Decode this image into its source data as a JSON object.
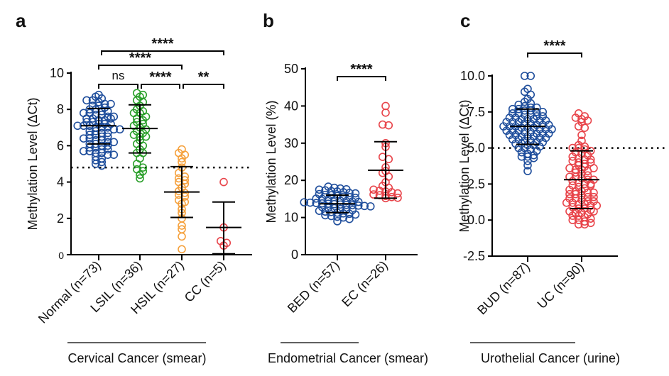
{
  "colors": {
    "blue": "#1f4e9c",
    "green": "#2ca02c",
    "orange": "#f5a13d",
    "red": "#e8444a"
  },
  "chart_data": [
    {
      "panel": "a",
      "type": "scatter",
      "ylabel": "Methylation Level (ΔCt)",
      "ylim": [
        0,
        10
      ],
      "yticks": [
        "0",
        "2",
        "4",
        "6",
        "8",
        "10"
      ],
      "ytick_values": [
        0,
        2,
        4,
        6,
        8,
        10
      ],
      "cutoff": 4.8,
      "group_caption": "Cervical Cancer (smear)",
      "groups": [
        {
          "label": "Normal (n=73)",
          "color": "#1f4e9c",
          "mean": 7.1,
          "sd_low": 6.1,
          "sd_high": 8.05,
          "values": [
            8.8,
            8.7,
            8.6,
            8.5,
            8.5,
            8.4,
            8.3,
            8.2,
            8.2,
            8.1,
            8.0,
            8.0,
            7.9,
            7.9,
            7.8,
            7.8,
            7.7,
            7.7,
            7.6,
            7.6,
            7.5,
            7.5,
            7.4,
            7.4,
            7.3,
            7.3,
            7.2,
            7.2,
            7.2,
            7.1,
            7.1,
            7.1,
            7.0,
            7.0,
            7.0,
            6.9,
            6.9,
            6.8,
            6.8,
            6.7,
            6.7,
            6.6,
            6.6,
            6.5,
            6.5,
            6.4,
            6.4,
            6.3,
            6.3,
            6.2,
            6.2,
            6.1,
            6.1,
            6.0,
            6.0,
            5.9,
            5.9,
            5.8,
            5.8,
            5.7,
            5.7,
            5.6,
            5.6,
            5.5,
            5.5,
            5.4,
            5.3,
            5.2,
            5.1,
            5.0,
            4.9,
            8.3,
            7.5
          ]
        },
        {
          "label": "LSIL (n=36)",
          "color": "#2ca02c",
          "mean": 6.95,
          "sd_low": 5.6,
          "sd_high": 8.25,
          "values": [
            8.9,
            8.8,
            8.7,
            8.5,
            8.4,
            8.2,
            8.0,
            7.9,
            7.8,
            7.8,
            7.6,
            7.5,
            7.4,
            7.3,
            7.2,
            7.1,
            7.0,
            6.9,
            6.8,
            6.7,
            6.6,
            6.5,
            6.5,
            6.3,
            6.1,
            6.0,
            5.8,
            5.6,
            5.6,
            5.3,
            5.0,
            4.8,
            4.7,
            4.6,
            4.4,
            4.2
          ]
        },
        {
          "label": "HSIL (n=27)",
          "color": "#f5a13d",
          "mean": 3.45,
          "sd_low": 2.05,
          "sd_high": 4.85,
          "values": [
            5.8,
            5.6,
            5.5,
            5.3,
            5.1,
            4.8,
            4.5,
            4.3,
            4.2,
            4.1,
            4.0,
            3.9,
            3.7,
            3.5,
            3.4,
            3.3,
            3.2,
            3.0,
            2.9,
            2.8,
            2.5,
            2.3,
            2.0,
            1.6,
            1.4,
            1.0,
            0.3
          ]
        },
        {
          "label": "CC (n=5)",
          "color": "#e8444a",
          "mean": 1.5,
          "sd_low": 0.05,
          "sd_high": 2.9,
          "values": [
            4.0,
            1.5,
            0.75,
            0.65,
            0.5
          ]
        }
      ],
      "comparisons": [
        {
          "from": 0,
          "to": 1,
          "row": 0,
          "label": "ns"
        },
        {
          "from": 1,
          "to": 2,
          "row": 0,
          "label": "****"
        },
        {
          "from": 2,
          "to": 3,
          "row": 0,
          "label": "**"
        },
        {
          "from": 0,
          "to": 2,
          "row": 1,
          "label": "****"
        },
        {
          "from": 0,
          "to": 3,
          "row": 2,
          "label": "****"
        }
      ]
    },
    {
      "panel": "b",
      "type": "scatter",
      "ylabel": "Methylation Level (%)",
      "ylim": [
        0,
        50
      ],
      "yticks": [
        "0",
        "10",
        "20",
        "30",
        "40",
        "50"
      ],
      "ytick_values": [
        0,
        10,
        20,
        30,
        40,
        50
      ],
      "cutoff": null,
      "group_caption": "Endometrial Cancer (smear)",
      "groups": [
        {
          "label": "BED (n=57)",
          "color": "#1f4e9c",
          "mean": 13.7,
          "sd_low": 11.3,
          "sd_high": 16.0,
          "values": [
            18.3,
            18.0,
            17.8,
            17.6,
            17.5,
            17.3,
            17.1,
            17.0,
            16.8,
            16.6,
            16.5,
            16.3,
            16.1,
            16.0,
            15.8,
            15.6,
            15.5,
            15.3,
            15.1,
            15.0,
            14.8,
            14.6,
            14.5,
            14.4,
            14.3,
            14.2,
            14.1,
            14.0,
            13.9,
            13.8,
            13.7,
            13.6,
            13.5,
            13.4,
            13.3,
            13.2,
            13.1,
            13.0,
            12.8,
            12.6,
            12.5,
            12.3,
            12.1,
            12.0,
            11.8,
            11.6,
            11.5,
            11.3,
            11.1,
            11.0,
            10.8,
            10.6,
            10.4,
            10.2,
            10.0,
            9.6,
            9.0
          ]
        },
        {
          "label": "EC (n=26)",
          "color": "#e8444a",
          "mean": 22.7,
          "sd_low": 15.2,
          "sd_high": 30.4,
          "values": [
            40.0,
            38.2,
            35.0,
            34.8,
            30.0,
            29.0,
            26.3,
            25.7,
            23.5,
            22.5,
            22.0,
            21.0,
            19.5,
            18.5,
            18.0,
            17.5,
            17.2,
            17.0,
            16.8,
            16.5,
            16.2,
            16.0,
            15.8,
            15.5,
            15.3,
            15.2
          ]
        }
      ],
      "comparisons": [
        {
          "from": 0,
          "to": 1,
          "row": 0,
          "label": "****"
        }
      ]
    },
    {
      "panel": "c",
      "type": "scatter",
      "ylabel": "Methylation Level (ΔCt)",
      "ylim": [
        -2.5,
        11
      ],
      "yticks": [
        "-2.5",
        "0.0",
        "2.5",
        "5.0",
        "7.5",
        "10.0"
      ],
      "ytick_values": [
        -2.5,
        0,
        2.5,
        5,
        7.5,
        10
      ],
      "cutoff": 5.0,
      "group_caption": "Urothelial Cancer  (urine)",
      "groups": [
        {
          "label": "BUD (n=87)",
          "color": "#1f4e9c",
          "mean": 6.5,
          "sd_low": 5.25,
          "sd_high": 7.7,
          "values": [
            10.0,
            10.0,
            9.1,
            8.9,
            8.7,
            8.4,
            8.2,
            8.1,
            8.0,
            7.9,
            7.8,
            7.8,
            7.7,
            7.7,
            7.6,
            7.6,
            7.5,
            7.5,
            7.4,
            7.4,
            7.3,
            7.3,
            7.2,
            7.2,
            7.1,
            7.1,
            7.0,
            7.0,
            7.0,
            6.9,
            6.9,
            6.8,
            6.8,
            6.8,
            6.7,
            6.7,
            6.6,
            6.6,
            6.6,
            6.5,
            6.5,
            6.5,
            6.4,
            6.4,
            6.4,
            6.3,
            6.3,
            6.3,
            6.2,
            6.2,
            6.2,
            6.1,
            6.1,
            6.0,
            6.0,
            6.0,
            5.9,
            5.9,
            5.8,
            5.8,
            5.8,
            5.7,
            5.7,
            5.6,
            5.6,
            5.5,
            5.5,
            5.4,
            5.4,
            5.3,
            5.3,
            5.2,
            5.2,
            5.1,
            5.0,
            5.0,
            4.9,
            4.8,
            4.7,
            4.6,
            4.5,
            4.4,
            4.4,
            4.3,
            4.1,
            3.8,
            3.4
          ]
        },
        {
          "label": "UC (n=90)",
          "color": "#e8444a",
          "mean": 2.8,
          "sd_low": 0.8,
          "sd_high": 4.8,
          "values": [
            7.4,
            7.2,
            7.1,
            7.0,
            6.9,
            6.8,
            6.5,
            6.4,
            5.9,
            5.5,
            5.2,
            5.1,
            5.0,
            5.0,
            4.9,
            4.8,
            4.7,
            4.6,
            4.5,
            4.4,
            4.3,
            4.2,
            4.2,
            4.1,
            4.0,
            3.9,
            3.8,
            3.7,
            3.6,
            3.5,
            3.5,
            3.4,
            3.3,
            3.2,
            3.1,
            3.0,
            3.0,
            2.9,
            2.8,
            2.8,
            2.7,
            2.6,
            2.5,
            2.5,
            2.4,
            2.3,
            2.2,
            2.1,
            2.0,
            2.0,
            1.9,
            1.8,
            1.8,
            1.7,
            1.6,
            1.6,
            1.5,
            1.5,
            1.4,
            1.3,
            1.3,
            1.2,
            1.2,
            1.1,
            1.1,
            1.0,
            1.0,
            0.9,
            0.8,
            0.8,
            0.7,
            0.6,
            0.5,
            0.5,
            0.4,
            0.3,
            0.3,
            0.2,
            0.1,
            0.0,
            0.0,
            -0.1,
            -0.2,
            -0.3,
            -0.3,
            3.6,
            2.4,
            4.0,
            1.9,
            0.6
          ]
        }
      ],
      "comparisons": [
        {
          "from": 0,
          "to": 1,
          "row": 0,
          "label": "****"
        }
      ]
    }
  ]
}
